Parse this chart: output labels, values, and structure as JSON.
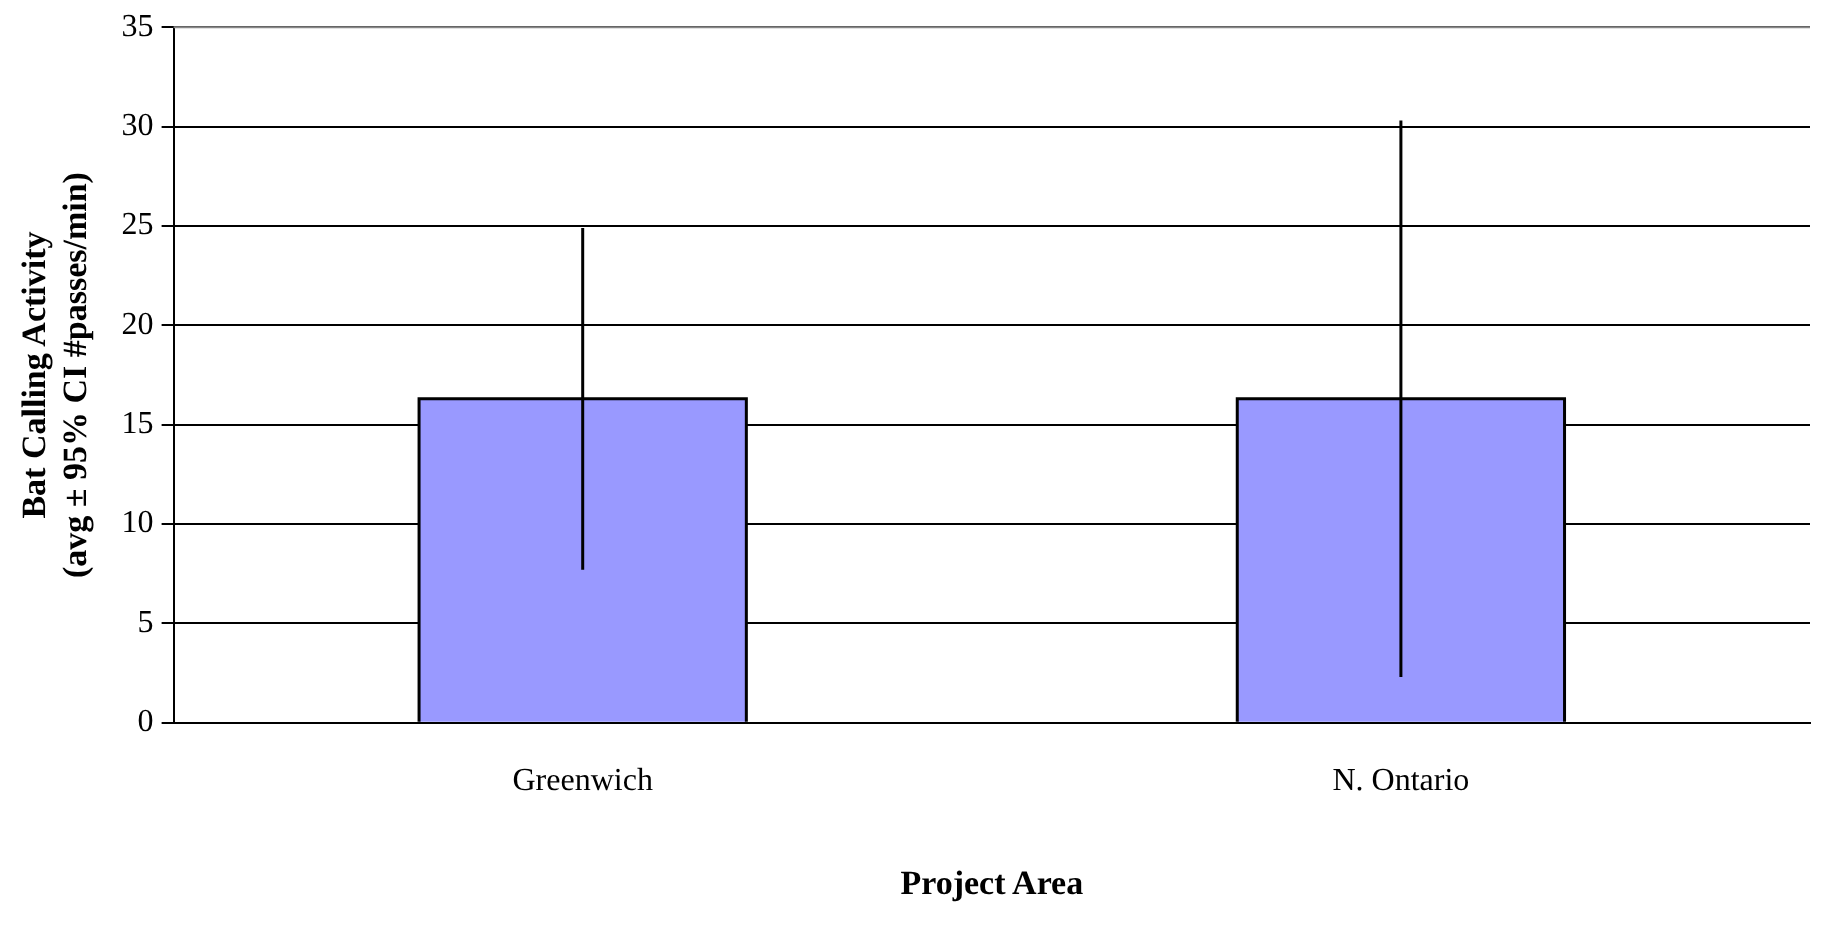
{
  "chart_data": {
    "type": "bar",
    "xlabel": "Project Area",
    "ylabel": "Bat Calling Activity\n(avg ± 95% CI #passes/min)",
    "categories": [
      "Greenwich",
      "N. Ontario"
    ],
    "values": [
      16.3,
      16.3
    ],
    "errors": [
      8.6,
      14.0
    ],
    "color": "#9999ff",
    "ylim": [
      0,
      35
    ],
    "yticks": [
      0,
      5,
      10,
      15,
      20,
      25,
      30,
      35
    ],
    "grid": "y",
    "legend": false
  }
}
